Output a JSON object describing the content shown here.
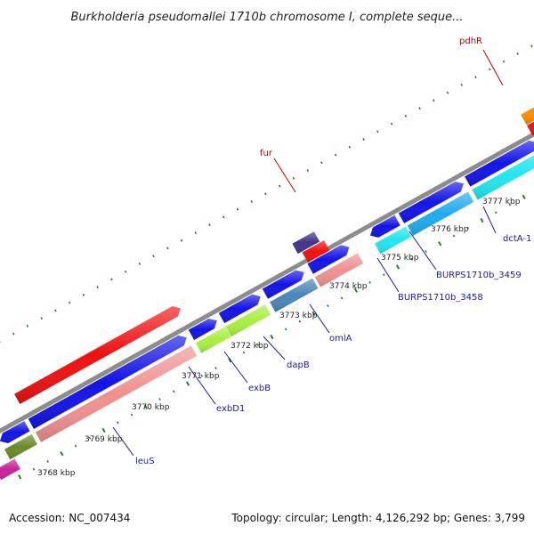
{
  "title": "Burkholderia pseudomallei 1710b chromosome I, complete seque...",
  "footer": {
    "accession": "Accession: NC_007434",
    "topology": "Topology: circular; Length: 4,126,292 bp; Genes: 3,799"
  },
  "ticks": [
    "3768 kbp",
    "3769 kbp",
    "3770 kbp",
    "3771 kbp",
    "3772 kbp",
    "3773 kbp",
    "3774 kbp",
    "3775 kbp",
    "3776 kbp",
    "3777 kbp"
  ],
  "gene_labels": {
    "pdhR": "pdhR",
    "fur": "fur",
    "dctA1": "dctA-1",
    "burps3459": "BURPS1710b_3459",
    "burps3458": "BURPS1710b_3458",
    "omlA": "omlA",
    "dapB": "dapB",
    "exbB": "exbB",
    "exbD1": "exbD1",
    "leuS": "leuS"
  },
  "colors": {
    "backbone": "#8c8c8c",
    "dots": "#2e7d2e",
    "blue": "#1414e6",
    "red": "#ee1111",
    "pink": "#f09090",
    "cyan": "#22e6ee",
    "skyblue": "#20aaf0",
    "steelblue": "#4a86b8",
    "lime": "#aaee44",
    "olive": "#6b8a2a",
    "orange": "#ff8c00",
    "purple": "#443388",
    "magenta": "#cc2299",
    "label_blue": "#1a1aa6",
    "label_red": "#c00000"
  }
}
